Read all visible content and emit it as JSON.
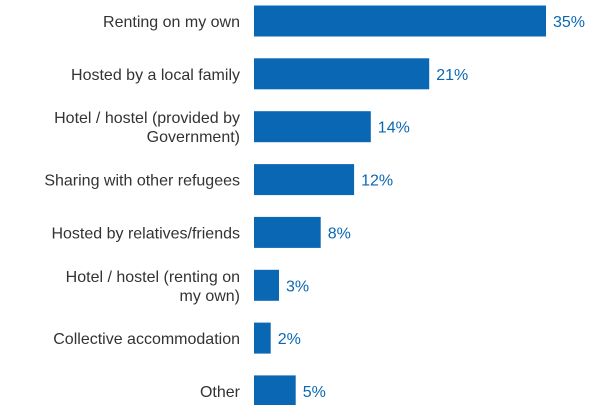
{
  "chart_data": {
    "type": "bar",
    "orientation": "horizontal",
    "categories": [
      [
        "Renting on my own"
      ],
      [
        "Hosted by a local family"
      ],
      [
        "Hotel / hostel (provided by",
        "Government)"
      ],
      [
        "Sharing with other refugees"
      ],
      [
        "Hosted by relatives/friends"
      ],
      [
        "Hotel / hostel (renting on",
        "my own)"
      ],
      [
        "Collective accommodation"
      ],
      [
        "Other"
      ]
    ],
    "values": [
      35,
      21,
      14,
      12,
      8,
      3,
      2,
      5
    ],
    "value_labels": [
      "35%",
      "21%",
      "14%",
      "12%",
      "8%",
      "3%",
      "2%",
      "5%"
    ],
    "unit": "%",
    "xlim": [
      0,
      35
    ],
    "grid": false,
    "bar_color": "#0a67b3",
    "label_color": "#333333",
    "value_label_color": "#0a67b3"
  }
}
